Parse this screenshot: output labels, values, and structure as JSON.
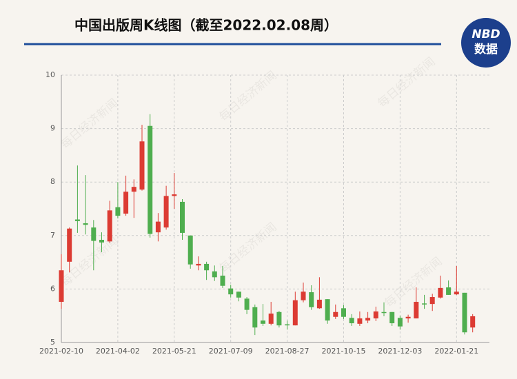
{
  "chart_data": {
    "type": "candlestick",
    "title": "中国出版周K线图（截至2022.02.08周）",
    "logo": {
      "top": "NBD",
      "bottom": "数据"
    },
    "watermark": "每日经济新闻",
    "up_color": "#dc3b33",
    "down_color": "#4fae4f",
    "categories": [
      "2021-02-10",
      null,
      null,
      null,
      null,
      null,
      null,
      "2021-04-02",
      null,
      null,
      null,
      null,
      null,
      null,
      "2021-05-21",
      null,
      null,
      null,
      null,
      null,
      null,
      "2021-07-09",
      null,
      null,
      null,
      null,
      null,
      null,
      "2021-08-27",
      null,
      null,
      null,
      null,
      null,
      null,
      "2021-10-15",
      null,
      null,
      null,
      null,
      null,
      null,
      "2021-12-03",
      null,
      null,
      null,
      null,
      null,
      null,
      "2022-01-21",
      null,
      null
    ],
    "open": [
      5.76,
      6.51,
      7.3,
      7.23,
      7.15,
      6.92,
      6.89,
      7.53,
      7.41,
      7.82,
      7.86,
      9.05,
      7.06,
      7.15,
      7.74,
      7.63,
      7.0,
      6.44,
      6.47,
      6.33,
      6.25,
      6.01,
      5.95,
      5.82,
      5.66,
      5.41,
      5.35,
      5.57,
      5.34,
      5.32,
      5.79,
      5.94,
      5.64,
      5.81,
      5.48,
      5.64,
      5.46,
      5.35,
      5.41,
      5.45,
      5.57,
      5.57,
      5.46,
      5.45,
      5.45,
      5.73,
      5.72,
      5.84,
      6.03,
      5.9,
      5.93,
      5.28
    ],
    "high": [
      6.65,
      7.15,
      8.31,
      8.13,
      7.29,
      7.06,
      7.65,
      8.0,
      8.12,
      8.05,
      9.07,
      9.27,
      7.42,
      7.93,
      8.17,
      7.68,
      7.0,
      6.61,
      6.51,
      6.44,
      6.43,
      6.08,
      5.95,
      5.85,
      5.71,
      5.72,
      5.76,
      5.59,
      5.41,
      5.95,
      6.12,
      6.07,
      6.22,
      5.81,
      5.71,
      5.7,
      5.53,
      5.58,
      5.57,
      5.67,
      5.75,
      5.57,
      5.5,
      5.52,
      6.03,
      5.89,
      5.91,
      6.25,
      6.16,
      6.43,
      5.93,
      5.53
    ],
    "low": [
      5.63,
      6.31,
      7.05,
      7.02,
      6.35,
      6.69,
      6.86,
      7.32,
      7.37,
      7.33,
      7.84,
      6.96,
      6.89,
      7.11,
      7.5,
      6.92,
      6.38,
      6.35,
      6.17,
      6.15,
      6.02,
      5.84,
      5.77,
      5.53,
      5.14,
      5.31,
      5.32,
      5.28,
      5.24,
      5.32,
      5.75,
      5.61,
      5.63,
      5.35,
      5.44,
      5.44,
      5.31,
      5.31,
      5.36,
      5.4,
      5.49,
      5.31,
      5.24,
      5.37,
      5.45,
      5.63,
      5.59,
      5.82,
      5.89,
      5.89,
      5.15,
      5.19
    ],
    "close": [
      6.35,
      7.13,
      7.27,
      7.2,
      6.9,
      6.87,
      7.47,
      7.37,
      7.82,
      7.91,
      8.76,
      7.03,
      7.26,
      7.74,
      7.77,
      7.05,
      6.46,
      6.47,
      6.35,
      6.22,
      6.06,
      5.9,
      5.84,
      5.61,
      5.28,
      5.35,
      5.54,
      5.32,
      5.32,
      5.79,
      5.95,
      5.66,
      5.8,
      5.41,
      5.57,
      5.48,
      5.36,
      5.45,
      5.46,
      5.58,
      5.56,
      5.36,
      5.3,
      5.48,
      5.76,
      5.72,
      5.85,
      6.02,
      5.89,
      5.95,
      5.19,
      5.49
    ],
    "ylim": [
      5,
      10
    ],
    "yticks": [
      5,
      6,
      7,
      8,
      9,
      10
    ],
    "grid": true
  }
}
